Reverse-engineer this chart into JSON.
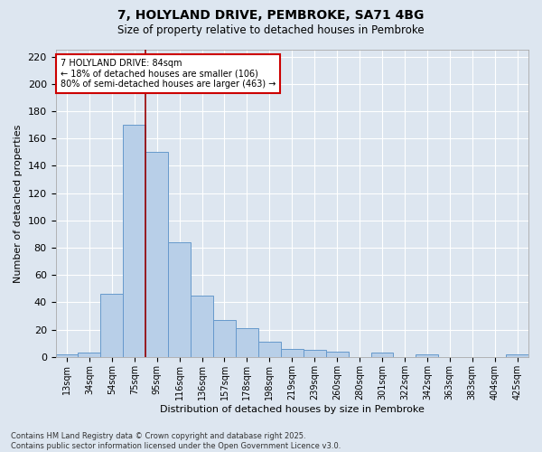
{
  "title": "7, HOLYLAND DRIVE, PEMBROKE, SA71 4BG",
  "subtitle": "Size of property relative to detached houses in Pembroke",
  "xlabel": "Distribution of detached houses by size in Pembroke",
  "ylabel": "Number of detached properties",
  "categories": [
    "13sqm",
    "34sqm",
    "54sqm",
    "75sqm",
    "95sqm",
    "116sqm",
    "136sqm",
    "157sqm",
    "178sqm",
    "198sqm",
    "219sqm",
    "239sqm",
    "260sqm",
    "280sqm",
    "301sqm",
    "322sqm",
    "342sqm",
    "363sqm",
    "383sqm",
    "404sqm",
    "425sqm"
  ],
  "values": [
    2,
    3,
    46,
    170,
    150,
    84,
    45,
    27,
    21,
    11,
    6,
    5,
    4,
    0,
    3,
    0,
    2,
    0,
    0,
    0,
    2
  ],
  "bar_color": "#b8cfe8",
  "bar_edge_color": "#6699cc",
  "bar_linewidth": 0.7,
  "vline_pos": 3.5,
  "vline_color": "#990000",
  "ylim": [
    0,
    225
  ],
  "yticks": [
    0,
    20,
    40,
    60,
    80,
    100,
    120,
    140,
    160,
    180,
    200,
    220
  ],
  "annotation_text": "7 HOLYLAND DRIVE: 84sqm\n← 18% of detached houses are smaller (106)\n80% of semi-detached houses are larger (463) →",
  "annotation_box_facecolor": "#ffffff",
  "annotation_box_edgecolor": "#cc0000",
  "bg_color": "#dde6f0",
  "grid_color": "#ffffff",
  "footer": "Contains HM Land Registry data © Crown copyright and database right 2025.\nContains public sector information licensed under the Open Government Licence v3.0."
}
